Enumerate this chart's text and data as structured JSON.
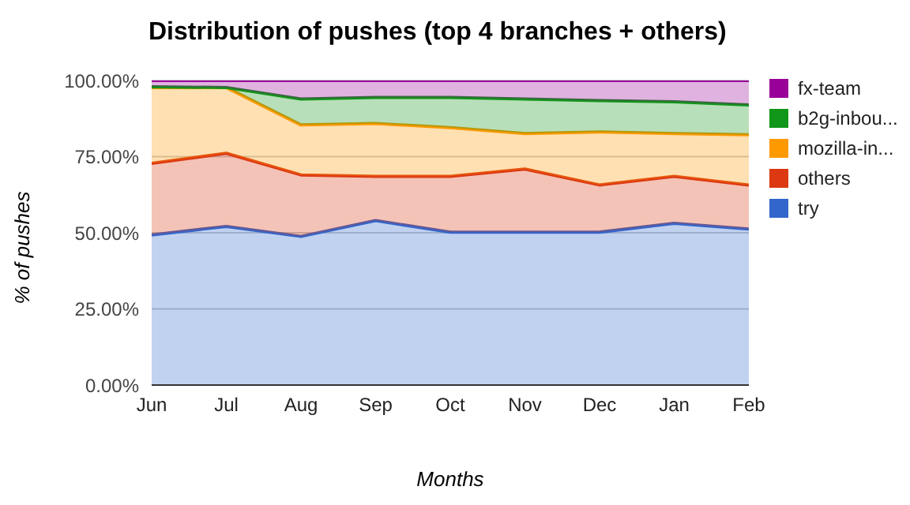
{
  "chart_data": {
    "type": "area",
    "title": "Distribution of pushes (top 4 branches + others)",
    "xlabel": "Months",
    "ylabel": "% of pushes",
    "stacked": true,
    "categories": [
      "Jun",
      "Jul",
      "Aug",
      "Sep",
      "Oct",
      "Nov",
      "Dec",
      "Jan",
      "Feb"
    ],
    "series": [
      {
        "name": "try",
        "color": "#3366cc",
        "values": [
          49.3,
          52.1,
          48.8,
          54.0,
          50.2,
          50.2,
          50.2,
          53.1,
          51.2
        ]
      },
      {
        "name": "others",
        "color": "#dc3912",
        "values": [
          23.5,
          24.0,
          20.2,
          14.5,
          18.3,
          20.7,
          15.5,
          15.4,
          14.5
        ]
      },
      {
        "name": "mozilla-in...",
        "color": "#ff9900",
        "values": [
          24.9,
          21.6,
          16.4,
          17.4,
          16.0,
          11.7,
          17.4,
          14.1,
          16.5
        ]
      },
      {
        "name": "b2g-inbou...",
        "color": "#109618",
        "values": [
          0.2,
          0,
          8.5,
          8.5,
          9.9,
          11.3,
          10.3,
          10.4,
          9.8
        ]
      },
      {
        "name": "fx-team",
        "color": "#990099",
        "values": [
          2.1,
          2.3,
          6.1,
          5.6,
          5.6,
          6.1,
          6.6,
          7.0,
          8.0
        ]
      }
    ],
    "ylim": [
      0,
      100
    ],
    "yticks": [
      {
        "value": 0,
        "label": "0.00%"
      },
      {
        "value": 25,
        "label": "25.00%"
      },
      {
        "value": 50,
        "label": "50.00%"
      },
      {
        "value": 75,
        "label": "75.00%"
      },
      {
        "value": 100,
        "label": "100.00%"
      }
    ],
    "grid": "y",
    "legend": "right"
  }
}
